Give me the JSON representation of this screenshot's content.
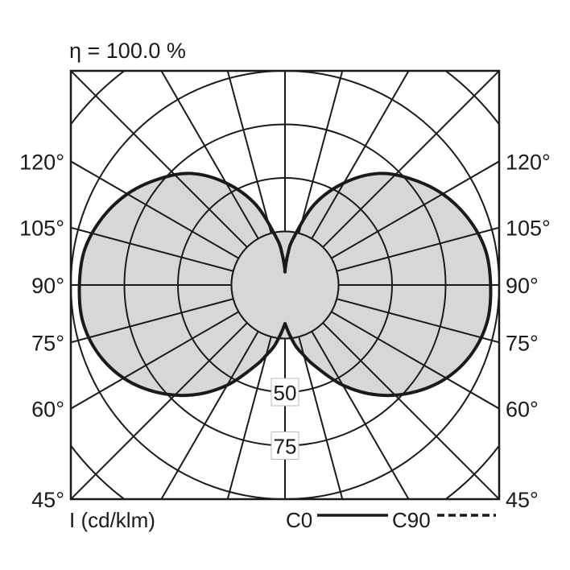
{
  "chart_data": {
    "type": "polar",
    "title": "η = 100.0 %",
    "unit_label": "I (cd/klm)",
    "radial_ticks": [
      25,
      50,
      75,
      100,
      125
    ],
    "radial_tick_labels": [
      "50",
      "75"
    ],
    "rmax": 100,
    "angle_step_deg": 15,
    "angle_labels_left": [
      "120°",
      "105°",
      "90°",
      "75°",
      "60°",
      "45°"
    ],
    "angle_labels_right": [
      "120°",
      "105°",
      "90°",
      "75°",
      "60°",
      "45°"
    ],
    "legend": [
      {
        "name": "C0",
        "style": "solid"
      },
      {
        "name": "C90",
        "style": "dashed"
      }
    ],
    "fill_color": "#d6d7d9",
    "line_color": "#1a1a1a",
    "series": [
      {
        "name": "C0",
        "gamma_deg": [
          0,
          5,
          10,
          15,
          20,
          30,
          40,
          50,
          60,
          70,
          80,
          90,
          100,
          110,
          120,
          130,
          140,
          150,
          160,
          170,
          175,
          180
        ],
        "values": [
          18,
          23,
          29,
          34,
          40,
          54,
          67,
          78,
          87,
          93,
          96,
          96,
          95,
          91,
          85,
          77,
          68,
          55,
          40,
          22,
          14,
          7
        ]
      }
    ]
  }
}
